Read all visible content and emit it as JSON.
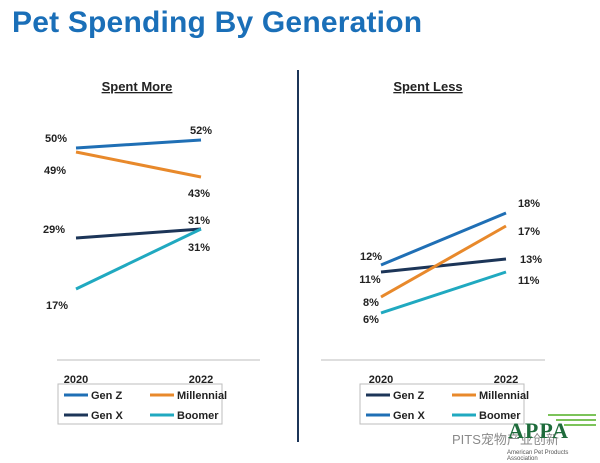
{
  "title": "Pet Spending By Generation",
  "chart_data": [
    {
      "type": "line",
      "title": "Spent More",
      "x": [
        "2020",
        "2022"
      ],
      "series": [
        {
          "name": "Gen Z",
          "values": [
            50,
            52
          ],
          "color": "#1f6fb5",
          "labels": [
            "50%",
            "52%"
          ]
        },
        {
          "name": "Millennial",
          "values": [
            49,
            43
          ],
          "color": "#e8892b",
          "labels": [
            "49%",
            "43%"
          ]
        },
        {
          "name": "Gen X",
          "values": [
            29,
            31
          ],
          "color": "#1c3558",
          "labels": [
            "29%",
            "31%"
          ]
        },
        {
          "name": "Boomer",
          "values": [
            17,
            31
          ],
          "color": "#20a9c0",
          "labels": [
            "17%",
            "31%"
          ]
        }
      ],
      "legend": [
        "Gen Z",
        "Millennial",
        "Gen X",
        "Boomer"
      ]
    },
    {
      "type": "line",
      "title": "Spent Less",
      "x": [
        "2020",
        "2022"
      ],
      "series": [
        {
          "name": "Gen Z",
          "values": [
            11,
            13
          ],
          "color": "#1c3558",
          "labels": [
            "11%",
            "13%"
          ]
        },
        {
          "name": "Millennial",
          "values": [
            8,
            17
          ],
          "color": "#e8892b",
          "labels": [
            "8%",
            "17%"
          ]
        },
        {
          "name": "Gen X",
          "values": [
            12,
            18
          ],
          "color": "#1f6fb5",
          "labels": [
            "12%",
            "18%"
          ]
        },
        {
          "name": "Boomer",
          "values": [
            6,
            11
          ],
          "color": "#20a9c0",
          "labels": [
            "6%",
            "11%"
          ]
        }
      ],
      "legend": [
        "Gen Z",
        "Millennial",
        "Gen X",
        "Boomer"
      ]
    }
  ],
  "watermark": "PITS宠物产业创新",
  "logo": {
    "text": "APPA",
    "subtitle": "American Pet Products Association"
  }
}
